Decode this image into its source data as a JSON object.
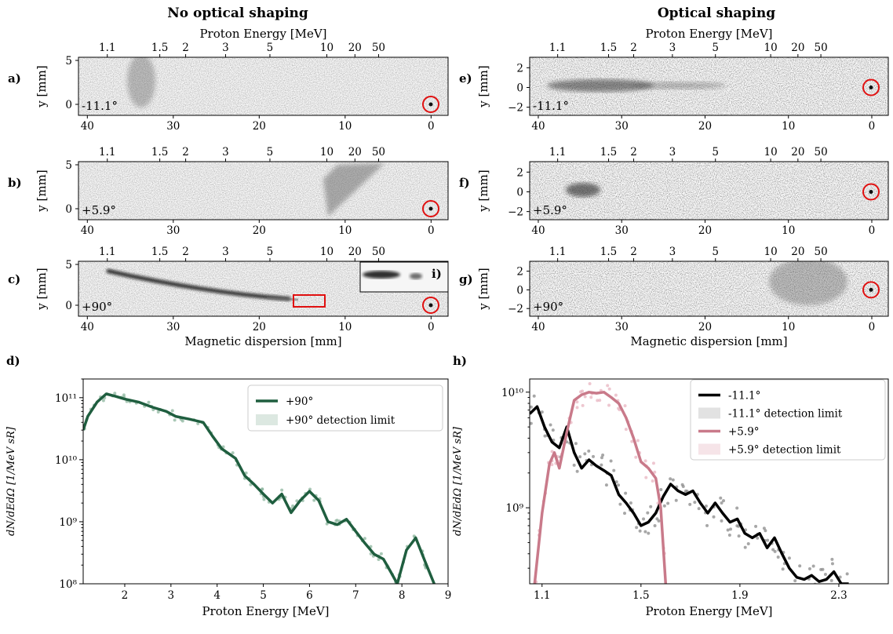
{
  "columns": {
    "left_title": "No optical shaping",
    "right_title": "Optical shaping"
  },
  "colors": {
    "green_line": "#1f5e3f",
    "green_dots": "#8cb59d",
    "green_band": "#dce8e1",
    "black_line": "#000000",
    "gray_dots": "#8a8a8a",
    "gray_band": "#e2e2e2",
    "pink_line": "#c97a8a",
    "pink_dots": "#e8b4c0",
    "pink_band": "#f6e4e8",
    "marker_red": "#e01010"
  },
  "images": [
    {
      "letter": "a)",
      "angle": "-11.1°",
      "top_axis_label": "Proton Energy [MeV]",
      "top_ticks": [
        "1.1",
        "1.5",
        "2",
        "3",
        "5",
        "10",
        "20",
        "50"
      ],
      "bottom_ticks": [
        "40",
        "30",
        "20",
        "10",
        "0"
      ],
      "ylabel": "y [mm]",
      "yticks": [
        "0",
        "5"
      ]
    },
    {
      "letter": "b)",
      "angle": "+5.9°",
      "top_ticks": [
        "1.1",
        "1.5",
        "2",
        "3",
        "5",
        "10",
        "20",
        "50"
      ],
      "bottom_ticks": [
        "40",
        "30",
        "20",
        "10",
        "0"
      ],
      "ylabel": "y [mm]",
      "yticks": [
        "0",
        "5"
      ]
    },
    {
      "letter": "c)",
      "angle": "+90°",
      "inset_letter": "i)",
      "top_ticks": [
        "1.1",
        "1.5",
        "2",
        "3",
        "5",
        "10",
        "20",
        "50"
      ],
      "bottom_ticks": [
        "40",
        "30",
        "20",
        "10",
        "0"
      ],
      "xlabel": "Magnetic dispersion [mm]",
      "ylabel": "y [mm]",
      "yticks": [
        "0",
        "5"
      ]
    },
    {
      "letter": "e)",
      "angle": "-11.1°",
      "top_axis_label": "Proton Energy [MeV]",
      "top_ticks": [
        "1.1",
        "1.5",
        "2",
        "3",
        "5",
        "10",
        "20",
        "50"
      ],
      "bottom_ticks": [
        "40",
        "30",
        "20",
        "10",
        "0"
      ],
      "ylabel": "y [mm]",
      "yticks": [
        "−2",
        "0",
        "2"
      ]
    },
    {
      "letter": "f)",
      "angle": "+5.9°",
      "top_ticks": [
        "1.1",
        "1.5",
        "2",
        "3",
        "5",
        "10",
        "20",
        "50"
      ],
      "bottom_ticks": [
        "40",
        "30",
        "20",
        "10",
        "0"
      ],
      "ylabel": "y [mm]",
      "yticks": [
        "−2",
        "0",
        "2"
      ]
    },
    {
      "letter": "g)",
      "angle": "+90°",
      "top_ticks": [
        "1.1",
        "1.5",
        "2",
        "3",
        "5",
        "10",
        "20",
        "50"
      ],
      "bottom_ticks": [
        "40",
        "30",
        "20",
        "10",
        "0"
      ],
      "xlabel": "Magnetic dispersion [mm]",
      "ylabel": "y [mm]",
      "yticks": [
        "−2",
        "0",
        "2"
      ]
    }
  ],
  "chart_data": [
    {
      "panel": "d)",
      "type": "line",
      "xlabel": "Proton Energy [MeV]",
      "ylabel": "dN/dEdΩ [1/MeV sR]",
      "xlim": [
        1.1,
        9
      ],
      "ylim": [
        100000000.0,
        200000000000.0
      ],
      "yscale": "log",
      "xticks": [
        "2",
        "3",
        "4",
        "5",
        "6",
        "7",
        "8",
        "9"
      ],
      "yticks": [
        "10⁸",
        "10⁹",
        "10¹⁰",
        "10¹¹"
      ],
      "legend_position": "top-right",
      "series": [
        {
          "name": "+90°",
          "x": [
            1.1,
            1.2,
            1.4,
            1.6,
            1.8,
            2.0,
            2.3,
            2.6,
            2.9,
            3.1,
            3.4,
            3.7,
            3.9,
            4.1,
            4.4,
            4.6,
            4.8,
            5.0,
            5.2,
            5.4,
            5.6,
            5.8,
            6.0,
            6.2,
            6.4,
            6.6,
            6.8,
            7.0,
            7.2,
            7.4,
            7.6,
            7.75,
            7.9,
            8.1,
            8.3,
            8.5,
            8.7
          ],
          "y": [
            30000000000.0,
            50000000000.0,
            85000000000.0,
            115000000000.0,
            105000000000.0,
            95000000000.0,
            85000000000.0,
            70000000000.0,
            60000000000.0,
            50000000000.0,
            45000000000.0,
            40000000000.0,
            24000000000.0,
            15000000000.0,
            10500000000.0,
            5500000000.0,
            4000000000.0,
            2800000000.0,
            2000000000.0,
            2800000000.0,
            1400000000.0,
            2200000000.0,
            3100000000.0,
            2200000000.0,
            1000000000.0,
            900000000.0,
            1100000000.0,
            700000000.0,
            450000000.0,
            300000000.0,
            250000000.0,
            160000000.0,
            100000000.0,
            350000000.0,
            550000000.0,
            230000000.0,
            100000000.0
          ]
        },
        {
          "name": "+90° detection limit",
          "x": [],
          "y": []
        }
      ]
    },
    {
      "panel": "h)",
      "type": "line",
      "xlabel": "Proton Energy [MeV]",
      "ylabel": "dN/dEdΩ [1/MeV sR]",
      "xlim": [
        1.05,
        2.5
      ],
      "ylim": [
        220000000.0,
        13000000000.0
      ],
      "yscale": "log",
      "xticks": [
        "1.1",
        "1.5",
        "1.9",
        "2.3"
      ],
      "yticks": [
        "10⁹",
        "10¹⁰"
      ],
      "legend_position": "top-right",
      "series": [
        {
          "name": "-11.1°",
          "x": [
            1.05,
            1.08,
            1.11,
            1.14,
            1.17,
            1.2,
            1.23,
            1.26,
            1.29,
            1.32,
            1.35,
            1.38,
            1.41,
            1.44,
            1.47,
            1.5,
            1.53,
            1.56,
            1.59,
            1.62,
            1.65,
            1.68,
            1.71,
            1.74,
            1.77,
            1.8,
            1.83,
            1.86,
            1.89,
            1.92,
            1.95,
            1.98,
            2.01,
            2.04,
            2.07,
            2.1,
            2.13,
            2.16,
            2.19,
            2.22,
            2.25,
            2.28,
            2.31,
            2.34
          ],
          "y": [
            6500000000.0,
            7500000000.0,
            5000000000.0,
            3700000000.0,
            3300000000.0,
            5000000000.0,
            3000000000.0,
            2200000000.0,
            2600000000.0,
            2300000000.0,
            2100000000.0,
            1900000000.0,
            1300000000.0,
            1100000000.0,
            900000000.0,
            700000000.0,
            750000000.0,
            900000000.0,
            1250000000.0,
            1600000000.0,
            1400000000.0,
            1300000000.0,
            1400000000.0,
            1100000000.0,
            900000000.0,
            1100000000.0,
            900000000.0,
            750000000.0,
            800000000.0,
            600000000.0,
            550000000.0,
            600000000.0,
            450000000.0,
            550000000.0,
            400000000.0,
            300000000.0,
            250000000.0,
            240000000.0,
            260000000.0,
            230000000.0,
            240000000.0,
            280000000.0,
            220000000.0,
            220000000.0
          ]
        },
        {
          "name": "-11.1° detection limit",
          "x": [],
          "y": []
        },
        {
          "name": "+5.9°",
          "x": [
            1.07,
            1.1,
            1.13,
            1.15,
            1.17,
            1.2,
            1.23,
            1.26,
            1.29,
            1.32,
            1.35,
            1.38,
            1.41,
            1.44,
            1.47,
            1.5,
            1.53,
            1.56,
            1.58,
            1.6
          ],
          "y": [
            220000000.0,
            900000000.0,
            2400000000.0,
            3000000000.0,
            2200000000.0,
            4500000000.0,
            8500000000.0,
            9500000000.0,
            10000000000.0,
            9800000000.0,
            10000000000.0,
            9000000000.0,
            8000000000.0,
            6000000000.0,
            4000000000.0,
            2500000000.0,
            2200000000.0,
            1800000000.0,
            1000000000.0,
            220000000.0
          ]
        },
        {
          "name": "+5.9° detection limit",
          "x": [],
          "y": []
        }
      ]
    }
  ]
}
